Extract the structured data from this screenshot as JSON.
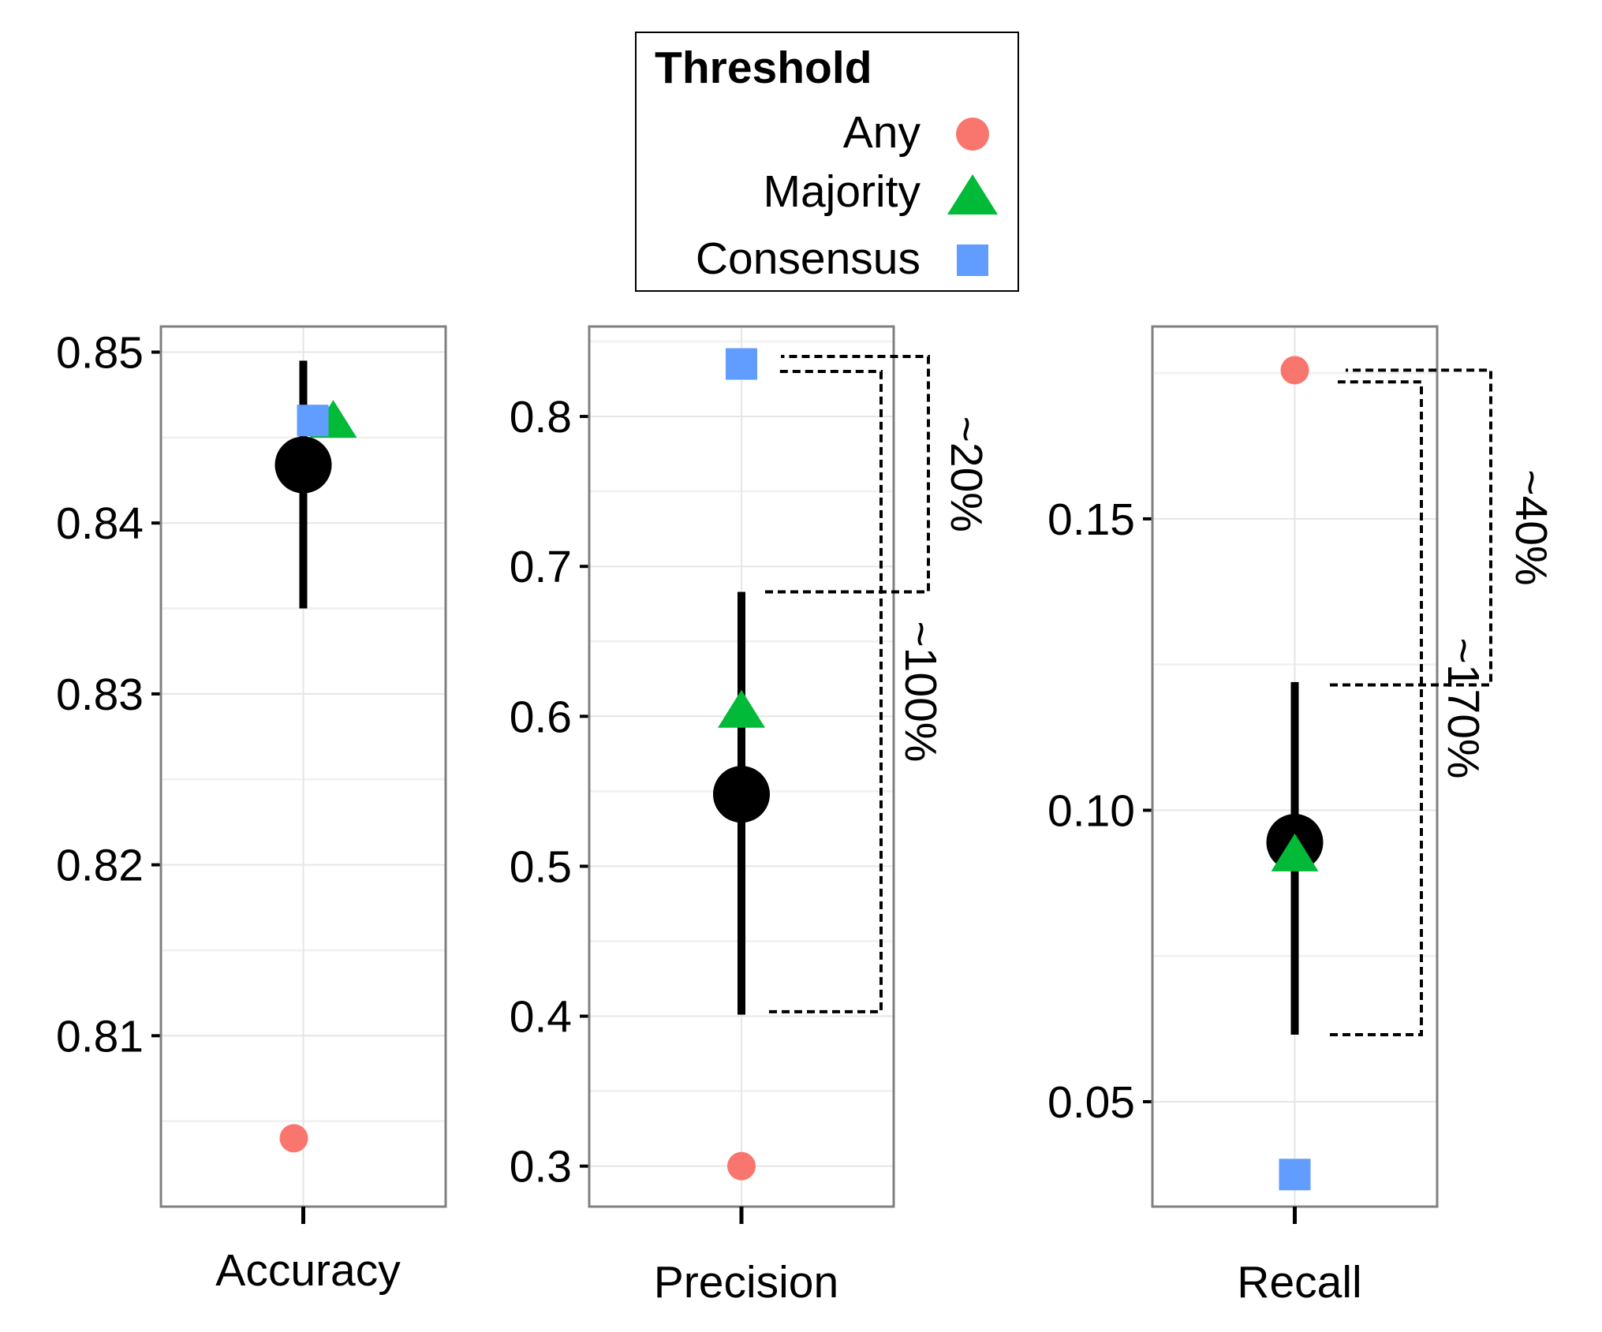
{
  "legend": {
    "title": "Threshold",
    "items": [
      {
        "label": "Any",
        "shape": "circle",
        "color": "#F8766D"
      },
      {
        "label": "Majority",
        "shape": "triangle",
        "color": "#00BA38"
      },
      {
        "label": "Consensus",
        "shape": "square",
        "color": "#619CFF"
      }
    ]
  },
  "chart_data": [
    {
      "type": "scatter",
      "category": "Accuracy",
      "ylim": [
        0.8,
        0.8515
      ],
      "yticks": [
        "0.81",
        "0.82",
        "0.83",
        "0.84",
        "0.85"
      ],
      "points": {
        "Any": 0.804,
        "Majority": 0.846,
        "Consensus": 0.846
      },
      "mean": 0.8434,
      "interval": [
        0.835,
        0.8495
      ],
      "brackets": []
    },
    {
      "type": "scatter",
      "category": "Precision",
      "ylim": [
        0.273,
        0.86
      ],
      "yticks": [
        "0.3",
        "0.4",
        "0.5",
        "0.6",
        "0.7",
        "0.8"
      ],
      "points": {
        "Any": 0.3,
        "Majority": 0.604,
        "Consensus": 0.835
      },
      "mean": 0.548,
      "interval": [
        0.401,
        0.683
      ],
      "brackets": [
        {
          "label": "~20%",
          "from": 0.683,
          "to": 0.84
        },
        {
          "label": "~100%",
          "from": 0.403,
          "to": 0.83
        }
      ]
    },
    {
      "type": "scatter",
      "category": "Recall",
      "ylim": [
        0.032,
        0.183
      ],
      "yticks": [
        "0.05",
        "0.10",
        "0.15"
      ],
      "points": {
        "Any": 0.1755,
        "Majority": 0.0925,
        "Consensus": 0.0375
      },
      "mean": 0.0945,
      "interval": [
        0.0615,
        0.122
      ],
      "brackets": [
        {
          "label": "~40%",
          "from": 0.1215,
          "to": 0.1755
        },
        {
          "label": "~170%",
          "from": 0.0615,
          "to": 0.1735
        }
      ]
    }
  ]
}
